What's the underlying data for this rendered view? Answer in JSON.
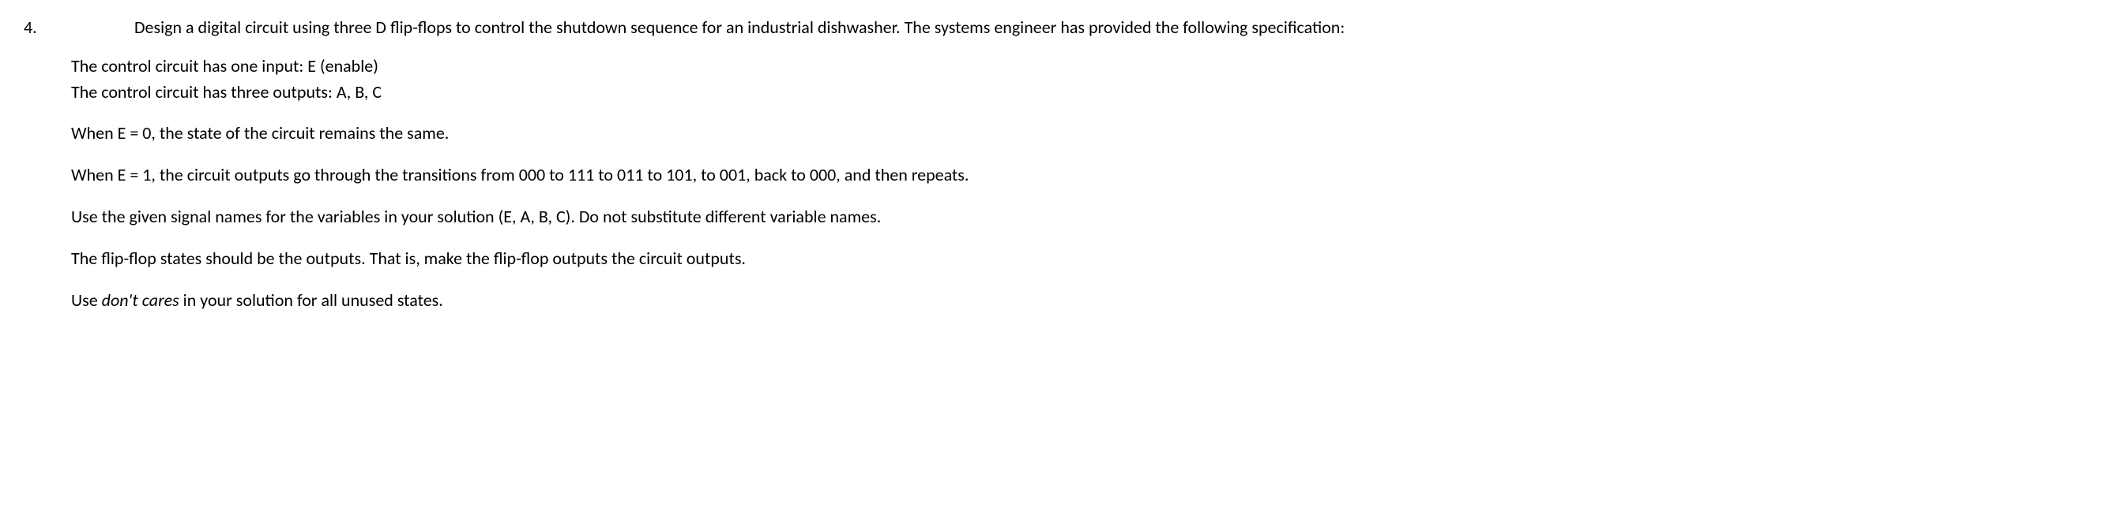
{
  "question": {
    "number": "4.",
    "intro": "Design a digital circuit using three D flip-flops to control the shutdown sequence for an industrial dishwasher. The systems engineer has provided the following specification:",
    "spec": {
      "line1": "The control circuit has one input: E (enable)",
      "line2": "The control circuit has three outputs: A, B, C",
      "line3": "When E = 0, the state of the circuit remains the same.",
      "line4": "When E = 1, the circuit outputs go through the transitions from 000 to 111 to 011 to 101, to 001, back to 000, and then repeats.",
      "line5": "Use the given signal names for the variables in your solution (E, A, B, C).  Do not substitute different variable names.",
      "line6": "The flip-flop states should be the outputs.  That is, make the flip-flop outputs the circuit outputs.",
      "line7a": "Use ",
      "line7b": "don't cares",
      "line7c": " in your solution for all unused states."
    }
  }
}
